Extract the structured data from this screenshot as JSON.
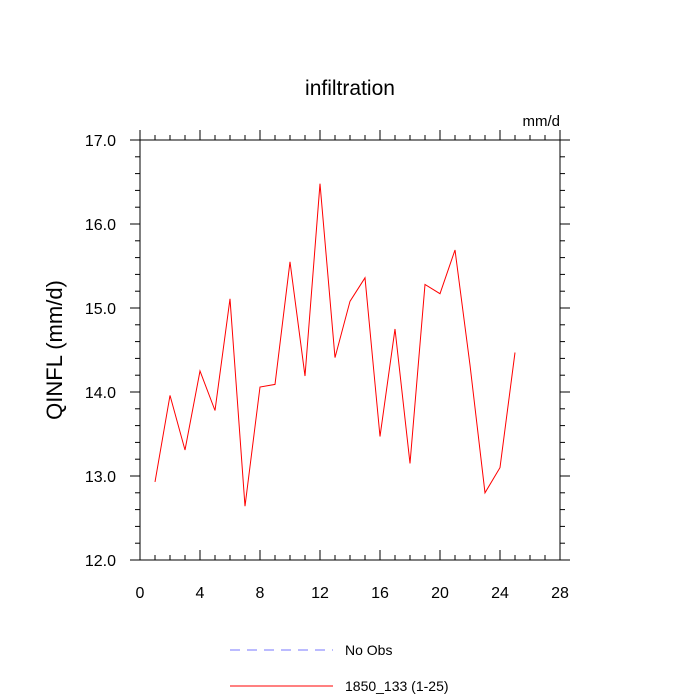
{
  "chart_data": {
    "type": "line",
    "title": "infiltration",
    "units_label": "mm/d",
    "xlabel": "",
    "ylabel": "QINFL  (mm/d)",
    "xlim": [
      0,
      28
    ],
    "ylim": [
      12.0,
      17.0
    ],
    "x_ticks": [
      0,
      4,
      8,
      12,
      16,
      20,
      24,
      28
    ],
    "x_tick_labels": [
      "0",
      "4",
      "8",
      "12",
      "16",
      "20",
      "24",
      "28"
    ],
    "y_ticks": [
      12.0,
      13.0,
      14.0,
      15.0,
      16.0,
      17.0
    ],
    "y_tick_labels": [
      "12.0",
      "13.0",
      "14.0",
      "15.0",
      "16.0",
      "17.0"
    ],
    "series": [
      {
        "name": "1850_133 (1-25)",
        "color": "#ff0000",
        "style": "solid",
        "x": [
          1,
          2,
          3,
          4,
          5,
          6,
          7,
          8,
          9,
          10,
          11,
          12,
          13,
          14,
          15,
          16,
          17,
          18,
          19,
          20,
          21,
          22,
          23,
          24,
          25
        ],
        "values": [
          12.93,
          13.96,
          13.31,
          14.25,
          13.78,
          15.11,
          12.64,
          14.06,
          14.09,
          15.55,
          14.19,
          16.48,
          14.41,
          15.08,
          15.36,
          13.47,
          14.75,
          13.15,
          15.28,
          15.17,
          15.69,
          14.32,
          12.8,
          13.1,
          14.47
        ]
      }
    ],
    "legend": [
      {
        "label": "No Obs",
        "color": "#7777ff",
        "style": "dashed"
      },
      {
        "label": "1850_133 (1-25)",
        "color": "#ff0000",
        "style": "solid"
      }
    ],
    "legend_position": "bottom-center"
  }
}
